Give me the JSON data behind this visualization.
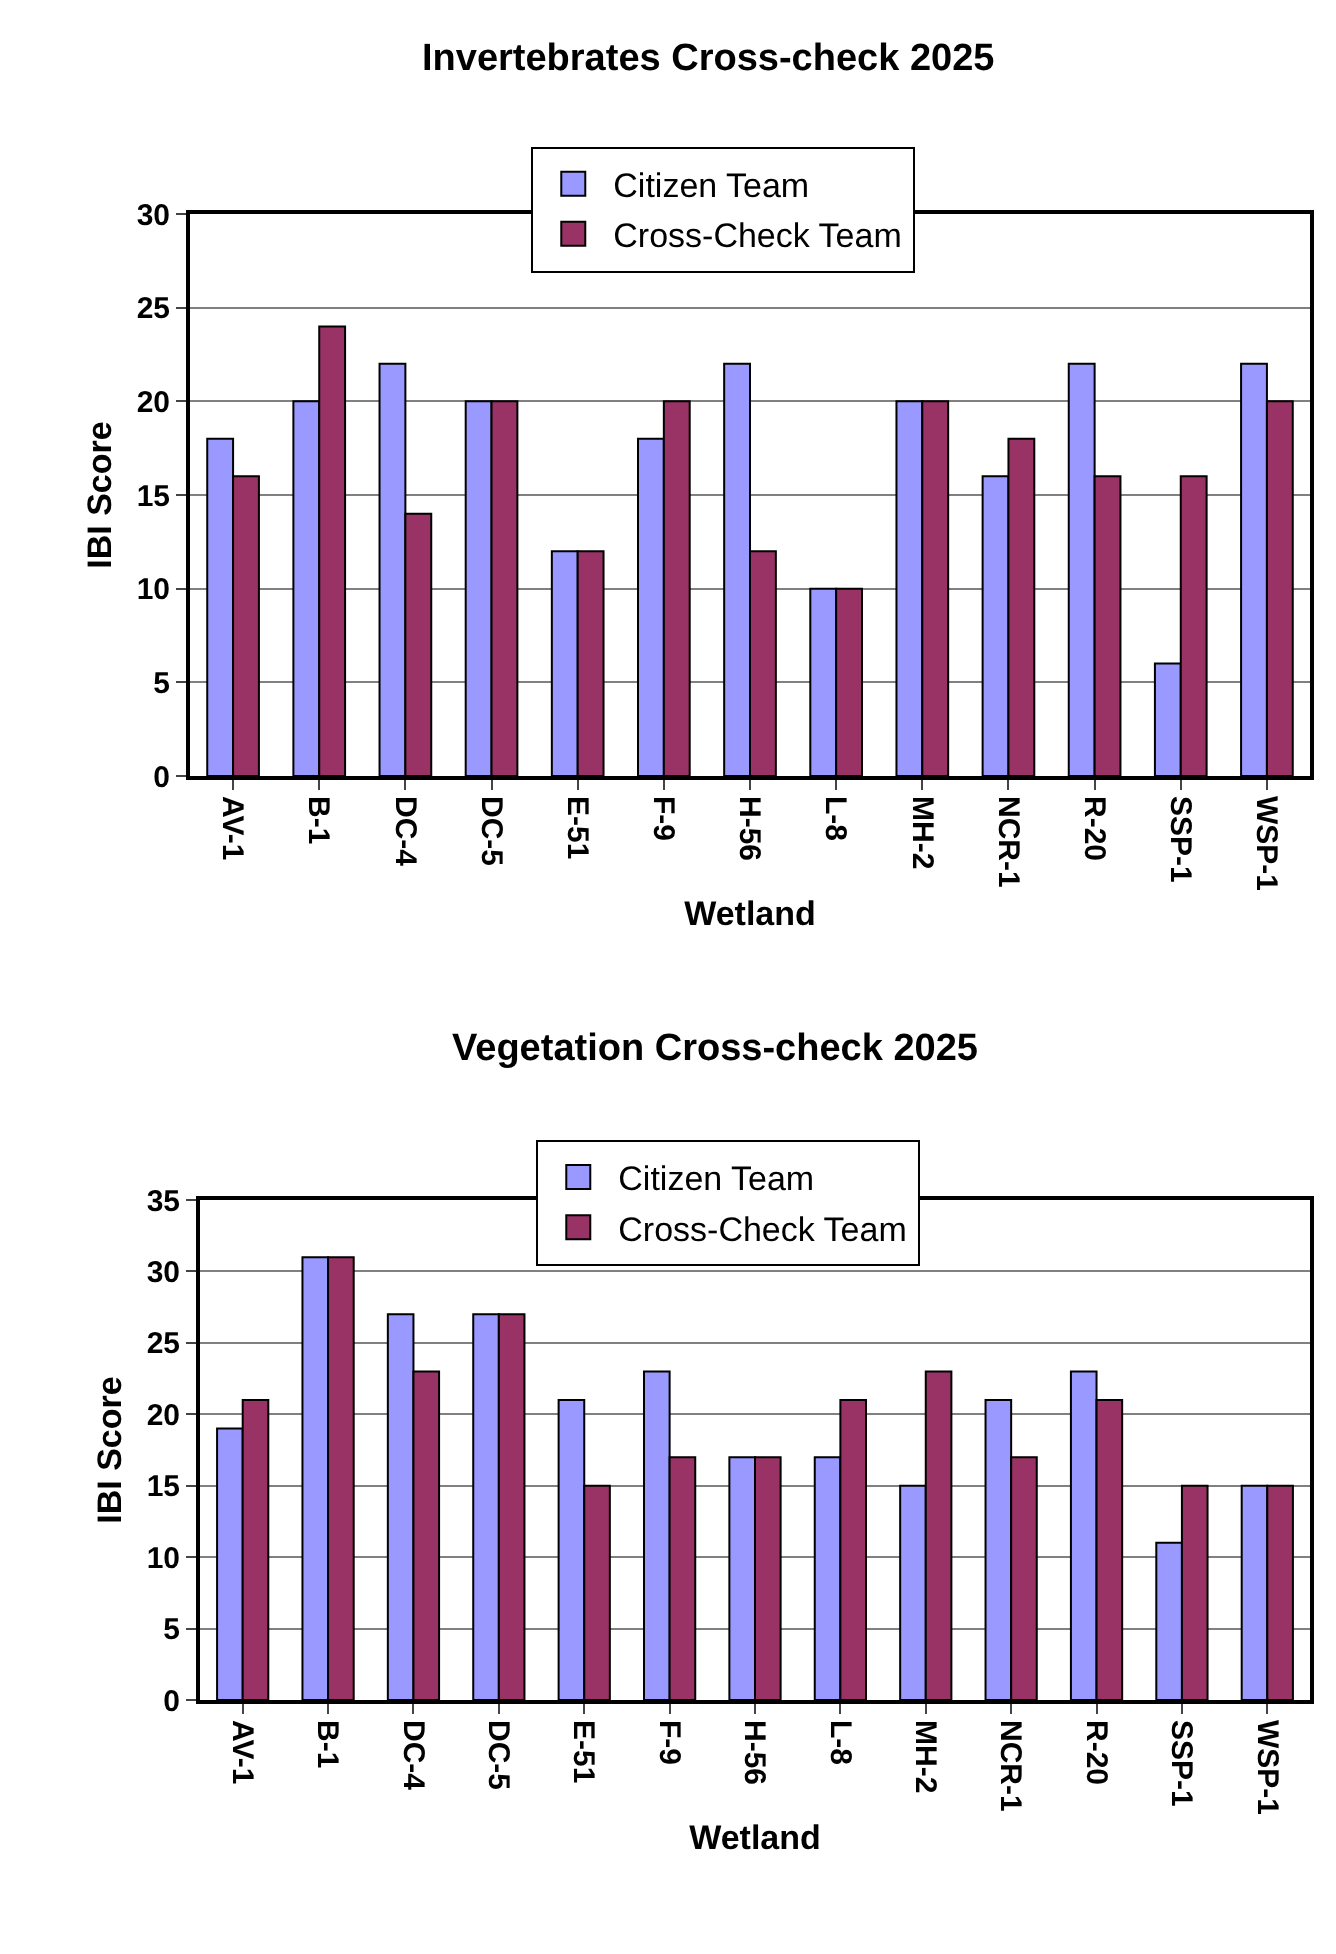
{
  "chart_data": [
    {
      "type": "bar",
      "title": "Invertebrates Cross-check 2025",
      "xlabel": "Wetland",
      "ylabel": "IBI Score",
      "categories": [
        "AV-1",
        "B-1",
        "DC-4",
        "DC-5",
        "E-51",
        "F-9",
        "H-56",
        "L-8",
        "MH-2",
        "NCR-1",
        "R-20",
        "SSP-1",
        "WSP-1"
      ],
      "series": [
        {
          "name": "Citizen Team",
          "color": "#9999ff",
          "values": [
            18,
            20,
            22,
            20,
            12,
            18,
            22,
            10,
            20,
            16,
            22,
            6,
            22
          ]
        },
        {
          "name": "Cross-Check Team",
          "color": "#993366",
          "values": [
            16,
            24,
            14,
            20,
            12,
            20,
            12,
            10,
            20,
            18,
            16,
            16,
            20
          ]
        }
      ],
      "ylim": [
        0,
        30
      ],
      "yticks": [
        0,
        5,
        10,
        15,
        20,
        25,
        30
      ],
      "grid": "y",
      "legend": "top"
    },
    {
      "type": "bar",
      "title": "Vegetation Cross-check 2025",
      "xlabel": "Wetland",
      "ylabel": "IBI Score",
      "categories": [
        "AV-1",
        "B-1",
        "DC-4",
        "DC-5",
        "E-51",
        "F-9",
        "H-56",
        "L-8",
        "MH-2",
        "NCR-1",
        "R-20",
        "SSP-1",
        "WSP-1"
      ],
      "series": [
        {
          "name": "Citizen Team",
          "color": "#9999ff",
          "values": [
            19,
            31,
            27,
            27,
            21,
            23,
            17,
            17,
            15,
            21,
            23,
            11,
            15
          ]
        },
        {
          "name": "Cross-Check Team",
          "color": "#993366",
          "values": [
            21,
            31,
            23,
            27,
            15,
            17,
            17,
            21,
            23,
            17,
            21,
            15,
            15
          ]
        }
      ],
      "ylim": [
        0,
        35
      ],
      "yticks": [
        0,
        5,
        10,
        15,
        20,
        25,
        30,
        35
      ],
      "grid": "y",
      "legend": "top"
    }
  ]
}
